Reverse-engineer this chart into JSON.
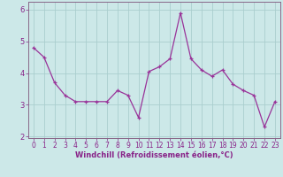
{
  "x": [
    0,
    1,
    2,
    3,
    4,
    5,
    6,
    7,
    8,
    9,
    10,
    11,
    12,
    13,
    14,
    15,
    16,
    17,
    18,
    19,
    20,
    21,
    22,
    23
  ],
  "y": [
    4.8,
    4.5,
    3.7,
    3.3,
    3.1,
    3.1,
    3.1,
    3.1,
    3.45,
    3.3,
    2.6,
    4.05,
    4.2,
    4.45,
    5.9,
    4.45,
    4.1,
    3.9,
    4.1,
    3.65,
    3.45,
    3.3,
    2.3,
    3.1
  ],
  "line_color": "#993399",
  "marker": "+",
  "marker_size": 3,
  "xlabel": "Windchill (Refroidissement éolien,°C)",
  "xlim": [
    -0.5,
    23.5
  ],
  "ylim": [
    1.95,
    6.25
  ],
  "yticks": [
    2,
    3,
    4,
    5,
    6
  ],
  "xticks": [
    0,
    1,
    2,
    3,
    4,
    5,
    6,
    7,
    8,
    9,
    10,
    11,
    12,
    13,
    14,
    15,
    16,
    17,
    18,
    19,
    20,
    21,
    22,
    23
  ],
  "bg_color": "#cce8e8",
  "grid_color": "#aacece",
  "line_width": 0.9,
  "spine_color": "#886688",
  "label_color": "#882288",
  "tick_fontsize": 5.5,
  "xlabel_fontsize": 6.0
}
